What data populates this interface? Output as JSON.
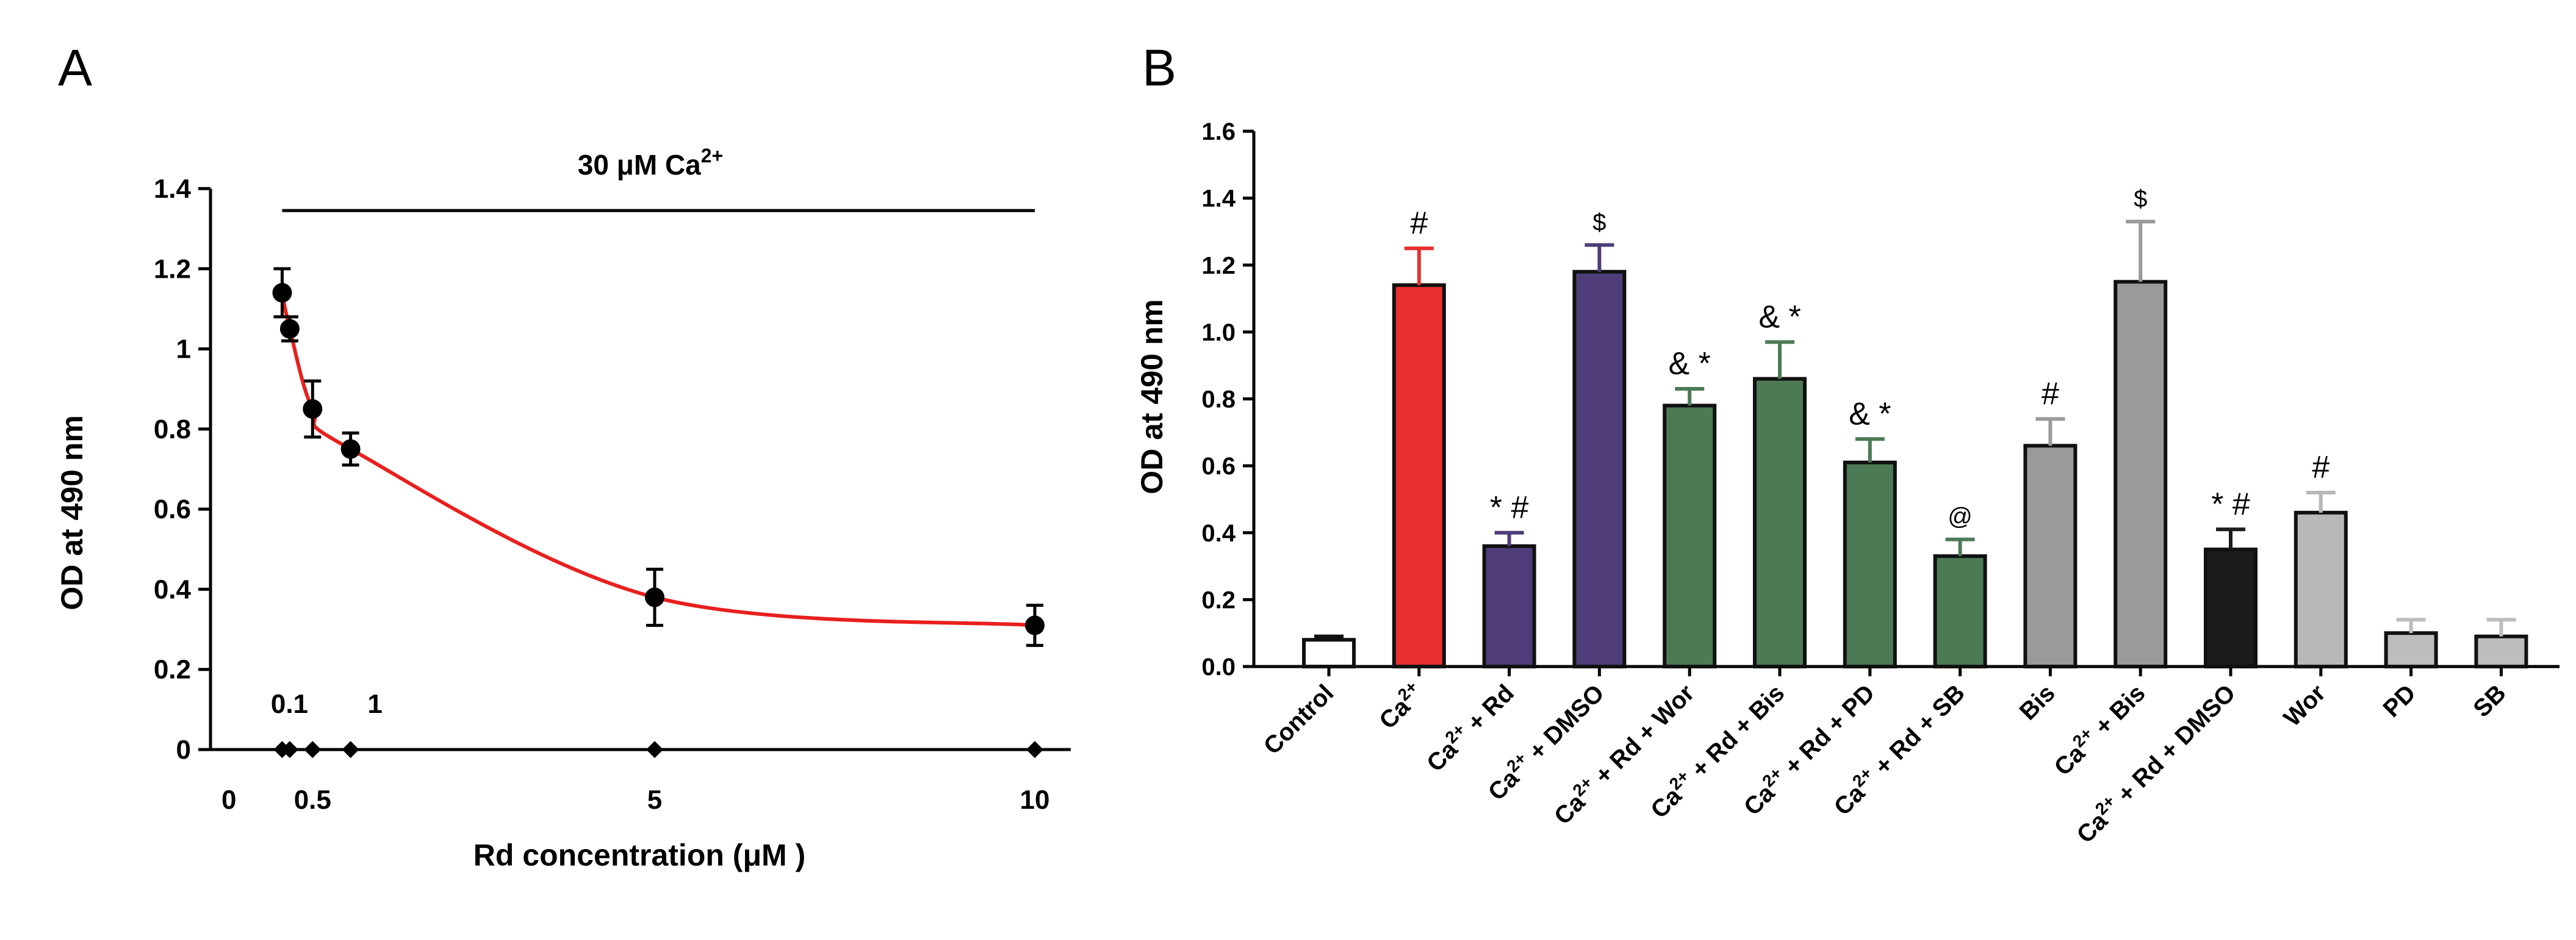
{
  "panels": {
    "a": {
      "letter": "A"
    },
    "b": {
      "letter": "B"
    }
  },
  "colors": {
    "line": "#e8201e",
    "axis": "#000000",
    "marker": "#000000"
  },
  "chart_data": [
    {
      "panel": "A",
      "type": "scatter",
      "title": "30 μM Ca2+",
      "title_main": "30 μM Ca",
      "title_sup": "2+",
      "xlabel": "Rd concentration  (μM )",
      "ylabel": "OD at 490 nm",
      "ylim": [
        0,
        1.4
      ],
      "y_ticks": [
        "0",
        "0.2",
        "0.4",
        "0.6",
        "0.8",
        "1",
        "1.2",
        "1.4"
      ],
      "x_tick_labels_bottom": [
        {
          "label": "0",
          "x": -0.6
        },
        {
          "label": "0.5",
          "x": 0.5
        },
        {
          "label": "5",
          "x": 5
        },
        {
          "label": "10",
          "x": 10
        }
      ],
      "x_tick_labels_upper": [
        {
          "label": "0.1",
          "x": 0.1
        },
        {
          "label": "1",
          "x": 1
        }
      ],
      "points": [
        {
          "x": 0.1,
          "y": 1.14,
          "err": 0.06
        },
        {
          "x": 0.2,
          "y": 1.05,
          "err": 0.03
        },
        {
          "x": 0.5,
          "y": 0.85,
          "err": 0.07
        },
        {
          "x": 1,
          "y": 0.75,
          "err": 0.04
        },
        {
          "x": 5,
          "y": 0.38,
          "err": 0.07
        },
        {
          "x": 10,
          "y": 0.31,
          "err": 0.05
        }
      ],
      "baseline_markers": [
        0.1,
        0.2,
        0.5,
        1,
        5,
        10
      ],
      "fit_line": true,
      "treatment_bar": {
        "from": 0.1,
        "to": 10
      }
    },
    {
      "panel": "B",
      "type": "bar",
      "ylabel": "OD at 490 nm",
      "ylim": [
        0,
        1.6
      ],
      "y_ticks": [
        "0.0",
        "0.2",
        "0.4",
        "0.6",
        "0.8",
        "1.0",
        "1.2",
        "1.4",
        "1.6"
      ],
      "bars": [
        {
          "label": "Control",
          "value": 0.08,
          "err": 0.01,
          "color": "#ffffff",
          "annotation": ""
        },
        {
          "label": "Ca2+",
          "value": 1.14,
          "err": 0.11,
          "color": "#e83030",
          "annotation": "#"
        },
        {
          "label": "Ca2+ + Rd",
          "value": 0.36,
          "err": 0.04,
          "color": "#4f3d7a",
          "annotation": "* #"
        },
        {
          "label": "Ca2+ + DMSO",
          "value": 1.18,
          "err": 0.08,
          "color": "#4f3d7a",
          "annotation": "$"
        },
        {
          "label": "Ca2+ + Rd + Wor",
          "value": 0.78,
          "err": 0.05,
          "color": "#4c7a55",
          "annotation": "& *"
        },
        {
          "label": "Ca2+ + Rd + Bis",
          "value": 0.86,
          "err": 0.11,
          "color": "#4c7a55",
          "annotation": "& *"
        },
        {
          "label": "Ca2+ + Rd + PD",
          "value": 0.61,
          "err": 0.07,
          "color": "#4c7a55",
          "annotation": "& *"
        },
        {
          "label": "Ca2+ + Rd + SB",
          "value": 0.33,
          "err": 0.05,
          "color": "#4c7a55",
          "annotation": "@"
        },
        {
          "label": "Bis",
          "value": 0.66,
          "err": 0.08,
          "color": "#9a9a9a",
          "annotation": "#"
        },
        {
          "label": "Ca2+ + Bis",
          "value": 1.15,
          "err": 0.18,
          "color": "#9a9a9a",
          "annotation": "$"
        },
        {
          "label": "Ca2+ + Rd + DMSO",
          "value": 0.35,
          "err": 0.06,
          "color": "#1c1c1c",
          "annotation": "* #"
        },
        {
          "label": "Wor",
          "value": 0.46,
          "err": 0.06,
          "color": "#b8b8b8",
          "annotation": "#"
        },
        {
          "label": "PD",
          "value": 0.1,
          "err": 0.04,
          "color": "#bdbdbd",
          "annotation": ""
        },
        {
          "label": "SB",
          "value": 0.09,
          "err": 0.05,
          "color": "#bdbdbd",
          "annotation": ""
        }
      ]
    }
  ]
}
